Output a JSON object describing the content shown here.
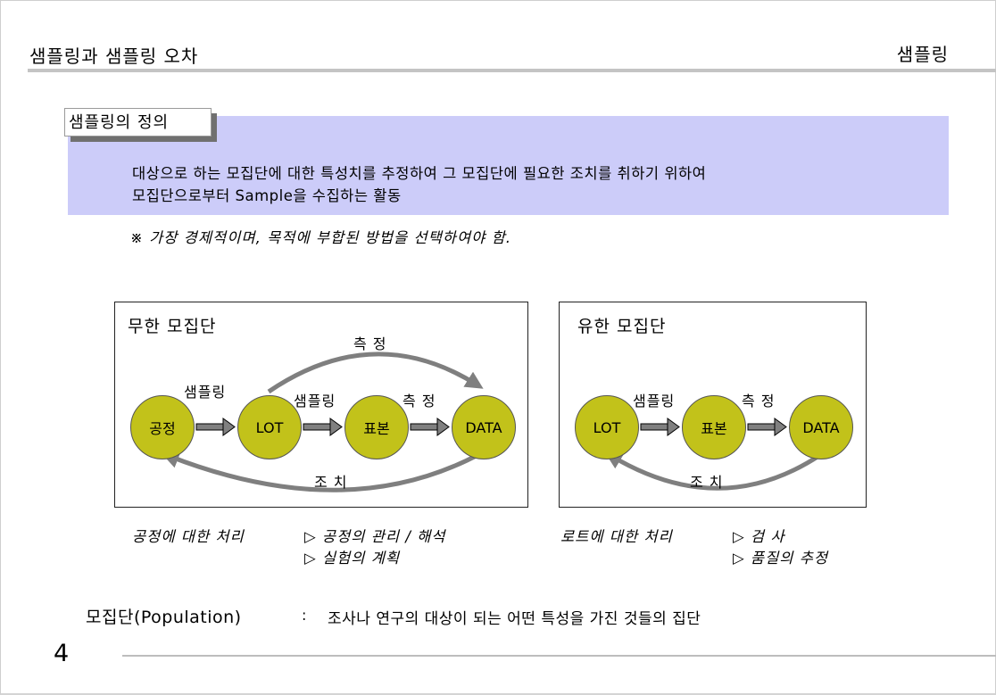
{
  "header": {
    "title": "샘플링과 샘플링 오차",
    "section": "샘플링"
  },
  "definition": {
    "tab_label": "샘플링의 정의",
    "line1": "대상으로 하는 모집단에 대한 특성치를 추정하여 그 모집단에 필요한 조치를 취하기 위하여",
    "line2": "모집단으로부터 Sample을 수집하는 활동",
    "note": "※ 가장 경제적이며, 목적에 부합된 방법을 선택하여야 함."
  },
  "infinite": {
    "title": "무한 모집단",
    "nodes": [
      "공정",
      "LOT",
      "표본",
      "DATA"
    ],
    "arrow_labels": [
      "샘플링",
      "샘플링",
      "측 정"
    ],
    "measure_label": "측 정",
    "action_label": "조 치",
    "caption_label": "공정에 대한 처리",
    "caption_items": [
      "▷ 공정의 관리 / 해석",
      "▷ 실험의 계획"
    ]
  },
  "finite": {
    "title": "유한 모집단",
    "nodes": [
      "LOT",
      "표본",
      "DATA"
    ],
    "arrow_labels": [
      "샘플링",
      "측 정"
    ],
    "action_label": "조 치",
    "caption_label": "로트에 대한 처리",
    "caption_items": [
      "▷ 검  사",
      "▷ 품질의 추정"
    ]
  },
  "population": {
    "term": "모집단(Population)",
    "colon": ":",
    "definition": "조사나 연구의 대상이 되는 어떤 특성을 가진 것들의 집단"
  },
  "page_number": "4",
  "colors": {
    "node_fill": "#c2c21a",
    "def_bg": "#ccccf9",
    "arrow": "#808080"
  }
}
